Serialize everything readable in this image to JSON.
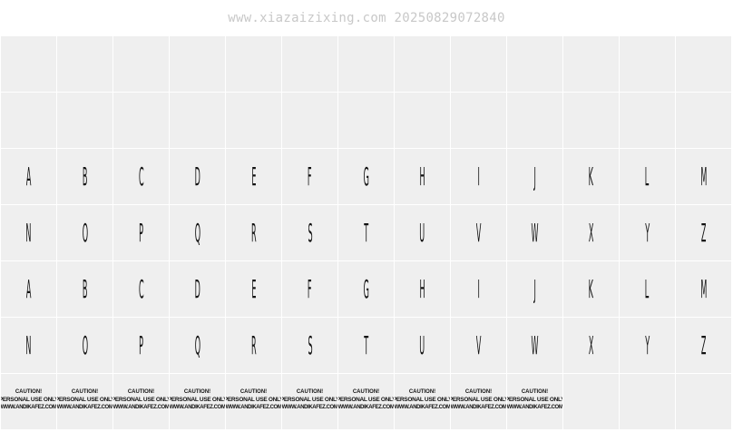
{
  "watermark": "www.xiazaizixing.com 20250829072840",
  "rows": [
    {
      "type": "empty",
      "cells": 13
    },
    {
      "type": "empty",
      "cells": 13
    },
    {
      "type": "glyphs",
      "chars": [
        "A",
        "B",
        "C",
        "D",
        "E",
        "F",
        "G",
        "H",
        "I",
        "J",
        "K",
        "L",
        "M"
      ]
    },
    {
      "type": "glyphs",
      "chars": [
        "N",
        "O",
        "P",
        "Q",
        "R",
        "S",
        "T",
        "U",
        "V",
        "W",
        "X",
        "Y",
        "Z"
      ]
    },
    {
      "type": "glyphs",
      "chars": [
        "A",
        "B",
        "C",
        "D",
        "E",
        "F",
        "G",
        "H",
        "I",
        "J",
        "K",
        "L",
        "M"
      ]
    },
    {
      "type": "glyphs",
      "chars": [
        "N",
        "O",
        "P",
        "Q",
        "R",
        "S",
        "T",
        "U",
        "V",
        "W",
        "X",
        "Y",
        "Z"
      ]
    },
    {
      "type": "caution",
      "count": 10,
      "total": 13
    }
  ],
  "caution": {
    "line1": "CAUTION!",
    "line2": "PERSONAL USE ONLY",
    "line3": "WWW.ANDIKAFEZ.COM"
  }
}
